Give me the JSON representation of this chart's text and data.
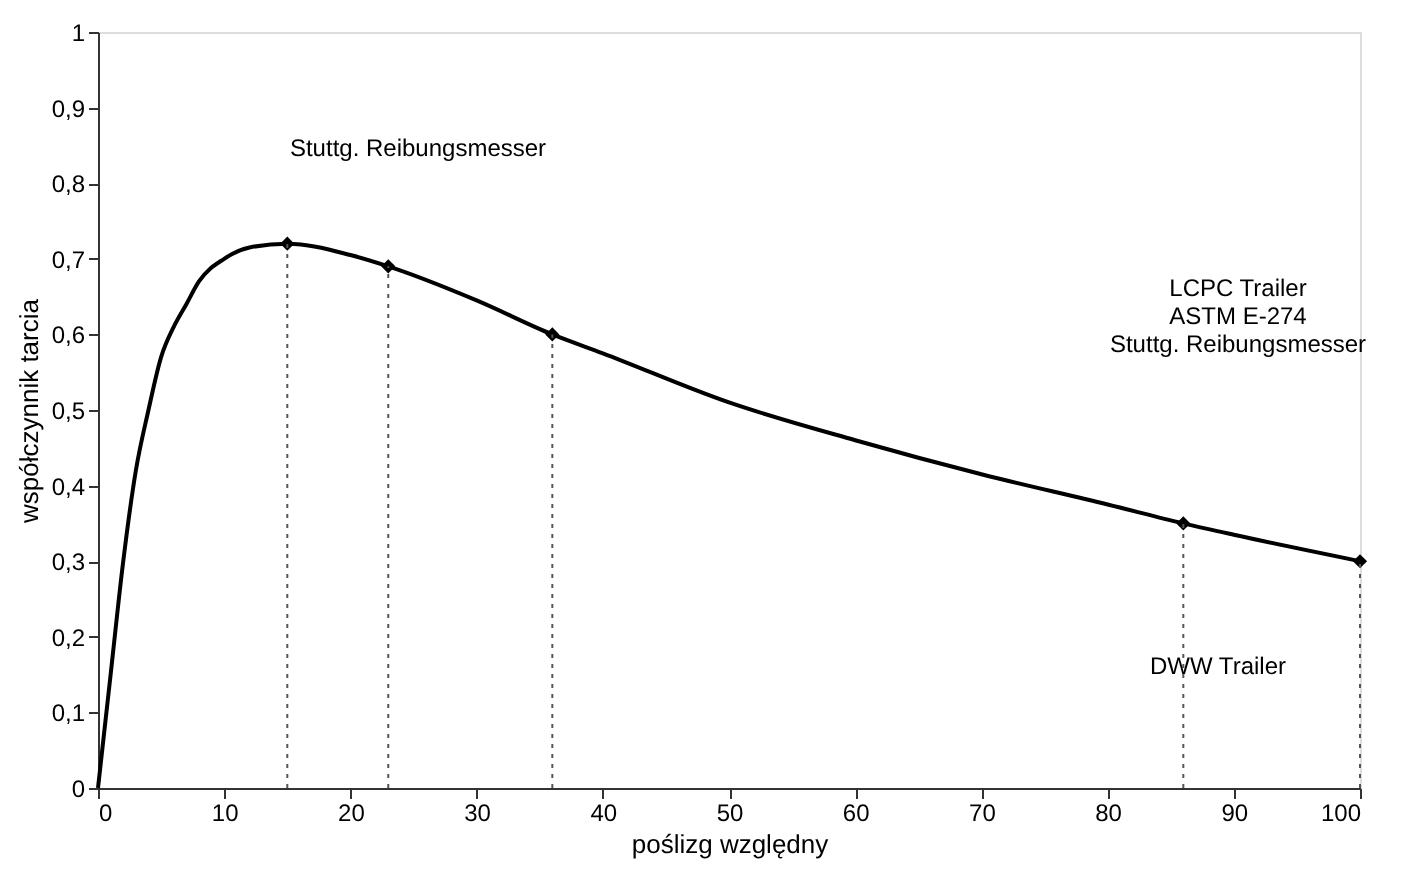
{
  "chart_data": {
    "type": "line",
    "xlabel": "poślizg względny",
    "ylabel": "współczynnik tarcia",
    "xlim": [
      0,
      100
    ],
    "xticks": [
      0,
      10,
      20,
      30,
      40,
      50,
      60,
      70,
      80,
      90,
      100
    ],
    "ylim": [
      0,
      1
    ],
    "yticks": [
      0,
      {
        "value": 0.1,
        "label": "0,1"
      },
      {
        "value": 0.2,
        "label": "0,2"
      },
      {
        "value": 0.3,
        "label": "0,3"
      },
      {
        "value": 0.4,
        "label": "0,4"
      },
      {
        "value": 0.5,
        "label": "0,5"
      },
      {
        "value": 0.6,
        "label": "0,6"
      },
      {
        "value": 0.7,
        "label": "0,7"
      },
      {
        "value": 0.8,
        "label": "0,8"
      },
      {
        "value": 0.9,
        "label": "0,9"
      },
      1
    ],
    "grid": false,
    "series": [
      {
        "color": "#000000",
        "marker": "none",
        "line_style": "solid",
        "x": [
          0,
          1,
          2,
          3,
          4,
          5,
          6,
          7,
          8,
          10,
          12,
          15,
          20,
          23,
          30,
          36,
          40,
          50,
          60,
          70,
          80,
          86,
          90,
          100
        ],
        "values": [
          0,
          0.15,
          0.3,
          0.42,
          0.5,
          0.57,
          0.61,
          0.64,
          0.67,
          0.7,
          0.715,
          0.72,
          0.705,
          0.69,
          0.645,
          0.6,
          0.575,
          0.51,
          0.46,
          0.415,
          0.375,
          0.35,
          0.335,
          0.3
        ]
      },
      {
        "type": "scatter",
        "color": "#000000",
        "marker": "diamond",
        "x": [
          15,
          23,
          36,
          86,
          100
        ],
        "values": [
          0.72,
          0.69,
          0.6,
          0.35,
          0.3
        ]
      }
    ],
    "ref_lines": [
      {
        "axis": "x",
        "value": 15,
        "line_style": "dotted",
        "color": "#555555"
      },
      {
        "axis": "x",
        "value": 23,
        "line_style": "dotted",
        "color": "#555555"
      },
      {
        "axis": "x",
        "value": 36,
        "line_style": "dotted",
        "color": "#555555"
      },
      {
        "axis": "x",
        "value": 86,
        "line_style": "dotted",
        "color": "#555555"
      },
      {
        "axis": "x",
        "value": 100,
        "line_style": "dotted",
        "color": "#555555"
      }
    ],
    "annotations": [
      "Stuttg. Reibungsmesser",
      "LCPC Trailer\nASTM E-274\nStuttg. Reibungsmesser",
      "DWW Trailer"
    ]
  }
}
